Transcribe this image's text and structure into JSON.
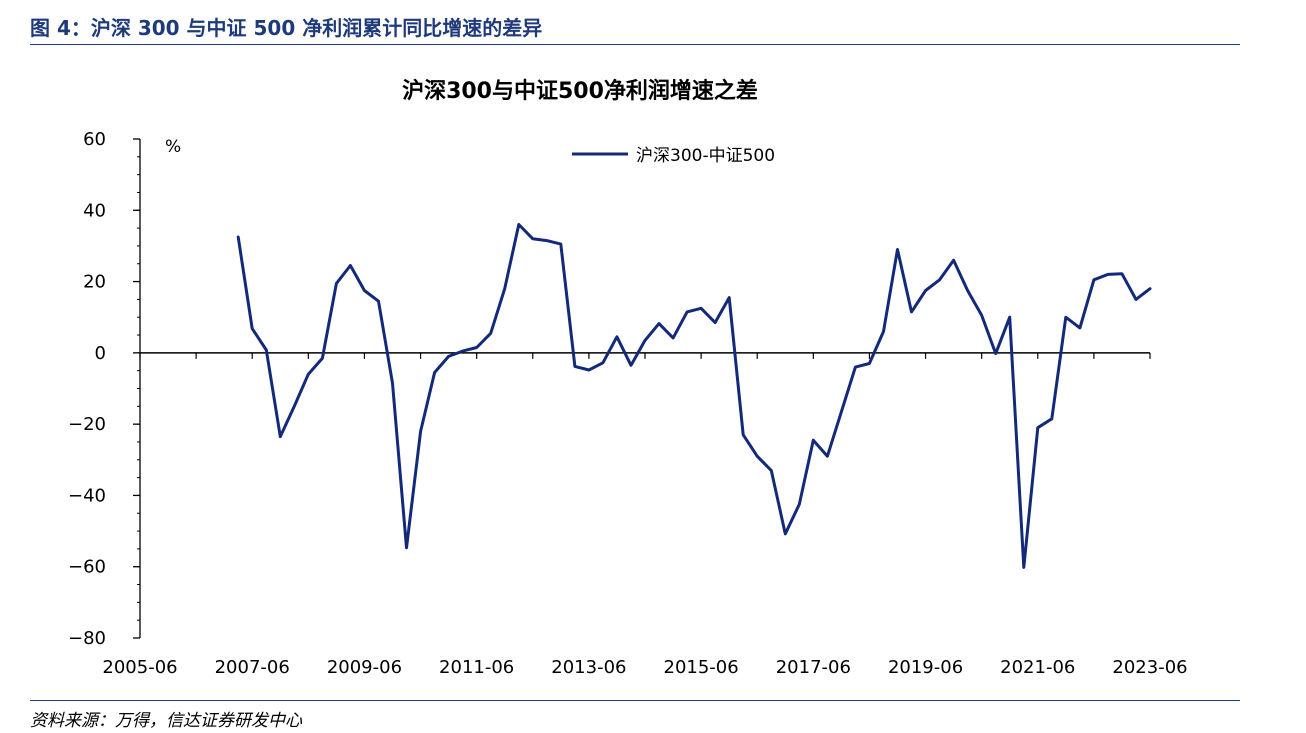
{
  "figure_title": "图 4：沪深 300 与中证 500 净利润累计同比增速的差异",
  "source_note": "资料来源：万得，信达证券研发中心",
  "colors": {
    "series": "#13297a",
    "axis": "#000000",
    "title": "#1f3a7a"
  },
  "chart_data": {
    "type": "line",
    "title": "沪深300与中证500净利润增速之差",
    "ylabel": "%",
    "xlabel": "",
    "ylim": [
      -80,
      60
    ],
    "yticks": [
      60,
      40,
      20,
      0,
      -20,
      -40,
      -60,
      -80
    ],
    "grid": false,
    "legend": "top-center",
    "x_start": "2005-06",
    "x_end": "2023-06",
    "xtick_labels": [
      "2005-06",
      "2007-06",
      "2009-06",
      "2011-06",
      "2013-06",
      "2015-06",
      "2017-06",
      "2019-06",
      "2021-06",
      "2023-06"
    ],
    "series": [
      {
        "name": "沪深300-中证500",
        "x": [
          "2007-03",
          "2007-06",
          "2007-09",
          "2007-12",
          "2008-03",
          "2008-06",
          "2008-09",
          "2008-12",
          "2009-03",
          "2009-06",
          "2009-09",
          "2009-12",
          "2010-03",
          "2010-06",
          "2010-09",
          "2010-12",
          "2011-03",
          "2011-06",
          "2011-09",
          "2011-12",
          "2012-03",
          "2012-06",
          "2012-09",
          "2012-12",
          "2013-03",
          "2013-06",
          "2013-09",
          "2013-12",
          "2014-03",
          "2014-06",
          "2014-09",
          "2014-12",
          "2015-03",
          "2015-06",
          "2015-09",
          "2015-12",
          "2016-03",
          "2016-06",
          "2016-09",
          "2016-12",
          "2017-03",
          "2017-06",
          "2017-09",
          "2017-12",
          "2018-03",
          "2018-06",
          "2018-09",
          "2018-12",
          "2019-03",
          "2019-06",
          "2019-09",
          "2019-12",
          "2020-03",
          "2020-06",
          "2020-09",
          "2020-12",
          "2021-03",
          "2021-06",
          "2021-09",
          "2021-12",
          "2022-03",
          "2022-06",
          "2022-09",
          "2022-12",
          "2023-03",
          "2023-06"
        ],
        "values": [
          32.5,
          6.8,
          0.8,
          -23.5,
          -15.0,
          -6.0,
          -1.5,
          19.5,
          24.5,
          17.5,
          14.5,
          -8.5,
          -54.7,
          -22.0,
          -5.5,
          -1.0,
          0.5,
          1.5,
          5.5,
          18.0,
          36.0,
          32.0,
          31.5,
          30.5,
          -3.8,
          -4.8,
          -2.8,
          4.5,
          -3.5,
          3.5,
          8.2,
          4.2,
          11.5,
          12.5,
          8.5,
          15.5,
          -23.0,
          -29.0,
          -33.0,
          -50.8,
          -42.5,
          -24.5,
          -29.0,
          -16.5,
          -4.0,
          -3.0,
          6.0,
          29.0,
          11.5,
          17.5,
          20.5,
          26.0,
          17.5,
          10.5,
          -0.2,
          10.0,
          -60.2,
          -21.0,
          -18.5,
          10.0,
          7.0,
          20.5,
          22.0,
          22.2,
          15.0,
          18.0
        ]
      }
    ]
  }
}
